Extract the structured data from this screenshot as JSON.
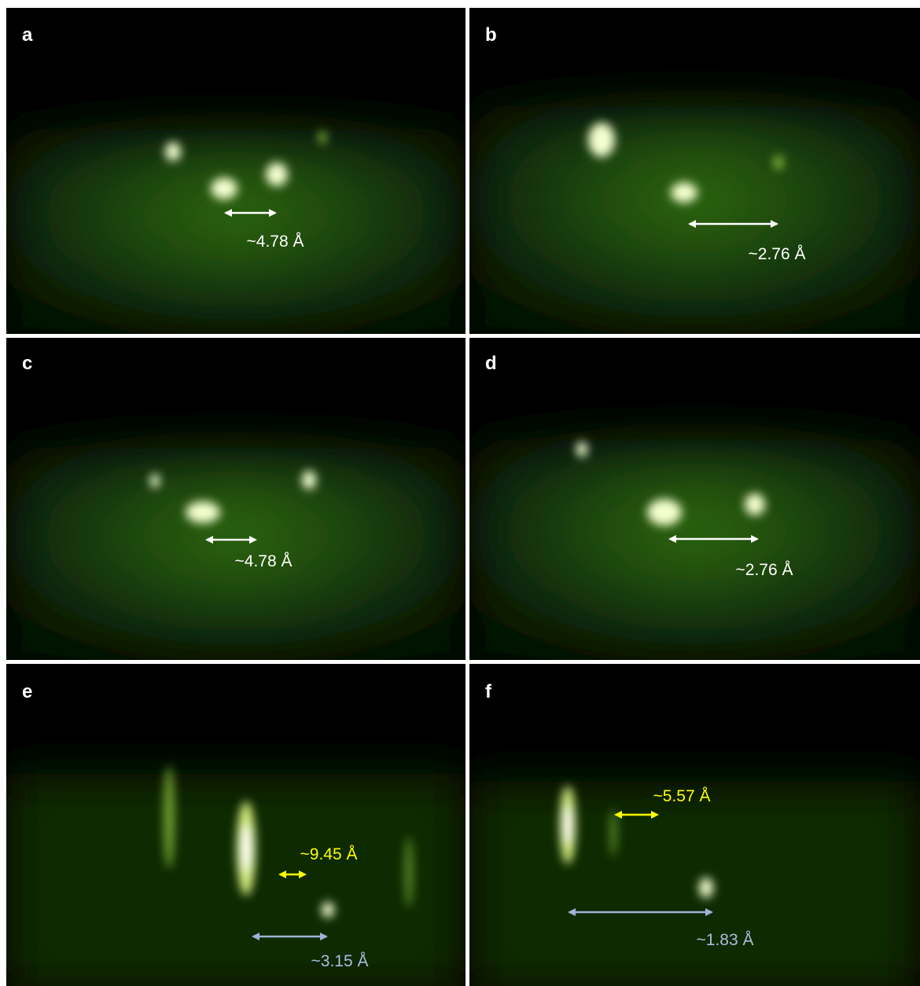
{
  "panels": [
    {
      "label": "a",
      "annotations": [
        "~4.78 Å"
      ]
    },
    {
      "label": "b",
      "annotations": [
        "~2.76 Å"
      ]
    },
    {
      "label": "c",
      "annotations": [
        "~4.78 Å"
      ]
    },
    {
      "label": "d",
      "annotations": [
        "~2.76 Å"
      ]
    },
    {
      "label": "e",
      "annotations": [
        "~9.45 Å",
        "~3.15 Å"
      ]
    },
    {
      "label": "f",
      "annotations": [
        "~5.57 Å",
        "~1.83 Å"
      ]
    }
  ]
}
